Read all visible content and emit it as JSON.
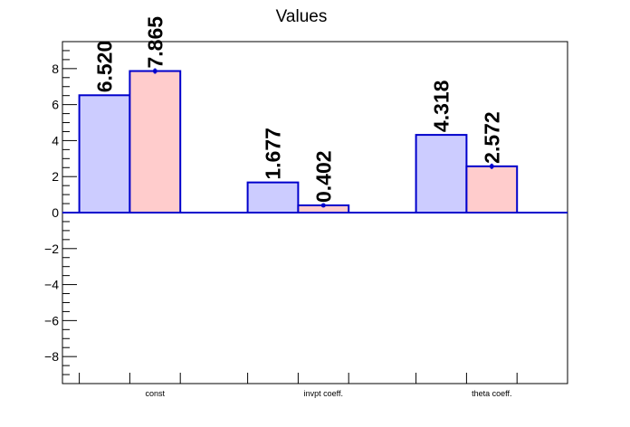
{
  "chart_data": {
    "type": "bar",
    "title": "Values",
    "categories": [
      "const",
      "invpt coeff.",
      "theta coeff."
    ],
    "series": [
      {
        "values": [
          6.52,
          1.677,
          4.318
        ],
        "color": "#ccccff"
      },
      {
        "values": [
          7.865,
          0.402,
          2.572
        ],
        "color": "#ffcccc",
        "errors": [
          0.15,
          0.12,
          0.15
        ]
      }
    ],
    "value_labels": [
      [
        "6.520",
        "1.677",
        "4.318"
      ],
      [
        "7.865",
        "0.402",
        "2.572"
      ]
    ],
    "outline_color": "#0000cc",
    "ylim": [
      -9.5,
      9.5
    ],
    "yticks": [
      -8,
      -6,
      -4,
      -2,
      0,
      2,
      4,
      6,
      8
    ],
    "ytick_labels": [
      "−8",
      "−6",
      "−4",
      "−2",
      "0",
      "2",
      "4",
      "6",
      "8"
    ],
    "grid": false,
    "xlabel": "",
    "ylabel": ""
  }
}
